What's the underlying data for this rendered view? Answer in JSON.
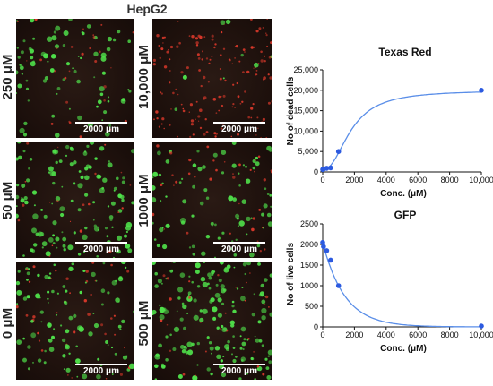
{
  "figure_title": "HepG2",
  "panels": [
    {
      "id": "p250",
      "label": "250 μM",
      "scale": "2000 μm",
      "cells": 110,
      "green": 0.75
    },
    {
      "id": "p10000",
      "label": "10,000 μM",
      "scale": "2000 μm",
      "cells": 170,
      "green": 0.05
    },
    {
      "id": "p50",
      "label": "50 μM",
      "scale": "2000 μm",
      "cells": 150,
      "green": 0.85
    },
    {
      "id": "p1000",
      "label": "1000 μM",
      "scale": "2000 μm",
      "cells": 120,
      "green": 0.7
    },
    {
      "id": "p0",
      "label": "0 μM",
      "scale": "2000 μm",
      "cells": 140,
      "green": 0.7
    },
    {
      "id": "p500",
      "label": "500 μM",
      "scale": "2000 μm",
      "cells": 200,
      "green": 0.9
    }
  ],
  "colors": {
    "green_cell": "#4fe04a",
    "red_cell": "#d8382a",
    "curve": "#5a8ee8",
    "point": "#2c5ae0"
  },
  "chart_data": [
    {
      "type": "scatter",
      "title": "Texas Red",
      "xlabel": "Conc. (μM)",
      "ylabel": "No of dead cells",
      "xlim": [
        0,
        10000
      ],
      "ylim": [
        0,
        25000
      ],
      "xticks": [
        "0",
        "2000",
        "4000",
        "6000",
        "8000",
        "10,000"
      ],
      "yticks": [
        "0",
        "5,000",
        "10,000",
        "15,000",
        "20,000",
        "25,000"
      ],
      "points": [
        [
          0,
          600
        ],
        [
          50,
          700
        ],
        [
          250,
          900
        ],
        [
          500,
          1000
        ],
        [
          1000,
          5000
        ],
        [
          10000,
          20000
        ]
      ],
      "fit": "sigmoid-increasing"
    },
    {
      "type": "scatter",
      "title": "GFP",
      "xlabel": "Conc. (μM)",
      "ylabel": "No of live cells",
      "xlim": [
        0,
        10000
      ],
      "ylim": [
        0,
        2500
      ],
      "xticks": [
        "0",
        "2000",
        "4000",
        "6000",
        "8000",
        "10,000"
      ],
      "yticks": [
        "0",
        "500",
        "1000",
        "1500",
        "2000",
        "2500"
      ],
      "points": [
        [
          0,
          2050
        ],
        [
          50,
          1950
        ],
        [
          250,
          1850
        ],
        [
          500,
          1620
        ],
        [
          1000,
          1000
        ],
        [
          10000,
          20
        ]
      ],
      "fit": "exponential-decay"
    }
  ]
}
